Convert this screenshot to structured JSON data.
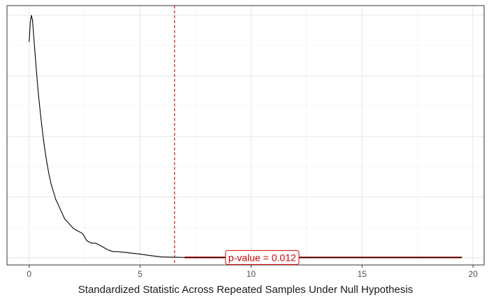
{
  "chart_data": {
    "type": "line",
    "title": "",
    "xlabel": "Standardized Statistic Across Repeated Samples Under Null Hypothesis",
    "ylabel": "",
    "xlim": [
      -1,
      20.5
    ],
    "ylim": [
      -0.03,
      1.04
    ],
    "x_ticks": [
      0,
      5,
      10,
      15,
      20
    ],
    "x_tick_labels": [
      "0",
      "5",
      "10",
      "15",
      "20"
    ],
    "y_ticks_shown": false,
    "grid": true,
    "series": [
      {
        "x": [
          0,
          0.05,
          0.1,
          0.15,
          0.2,
          0.3,
          0.4,
          0.5,
          0.6,
          0.7,
          0.8,
          0.9,
          1.0,
          1.1,
          1.2,
          1.3,
          1.4,
          1.5,
          1.6,
          1.8,
          2.0,
          2.2,
          2.4,
          2.6,
          2.8,
          3.0,
          3.2,
          3.4,
          3.6,
          3.8,
          4.0,
          4.5,
          5.0,
          5.5,
          6.0,
          6.5,
          7.0,
          8.0,
          9.0,
          10.0,
          11.0,
          12.0,
          13.0,
          14.0,
          15.0,
          16.0,
          17.0,
          18.0,
          19.0,
          19.5
        ],
        "y": [
          0.89,
          0.97,
          1.0,
          0.98,
          0.92,
          0.8,
          0.69,
          0.6,
          0.52,
          0.45,
          0.39,
          0.34,
          0.3,
          0.27,
          0.24,
          0.22,
          0.2,
          0.18,
          0.16,
          0.14,
          0.12,
          0.11,
          0.1,
          0.07,
          0.06,
          0.06,
          0.05,
          0.04,
          0.03,
          0.025,
          0.025,
          0.02,
          0.015,
          0.008,
          0.003,
          0.002,
          0.001,
          0.001,
          0.0008,
          0.0008,
          0.0008,
          0.0008,
          0.0008,
          0.0008,
          0.0008,
          0.0008,
          0.0008,
          0.0008,
          0.0008,
          0.0008
        ]
      }
    ],
    "reference_line": {
      "x": 6.55,
      "color": "#d00000",
      "style": "dashed"
    },
    "shaded_region": {
      "x_from": 6.55,
      "color": "#d00000"
    },
    "annotation": {
      "text": "p-value = 0.012",
      "x": 10.5,
      "y": 0.0008,
      "color": "#d00000"
    },
    "colors": {
      "line": "#000000",
      "grid_major": "#e6e6e6",
      "grid_minor": "#f2f2f2",
      "panel_border": "#333333"
    }
  }
}
